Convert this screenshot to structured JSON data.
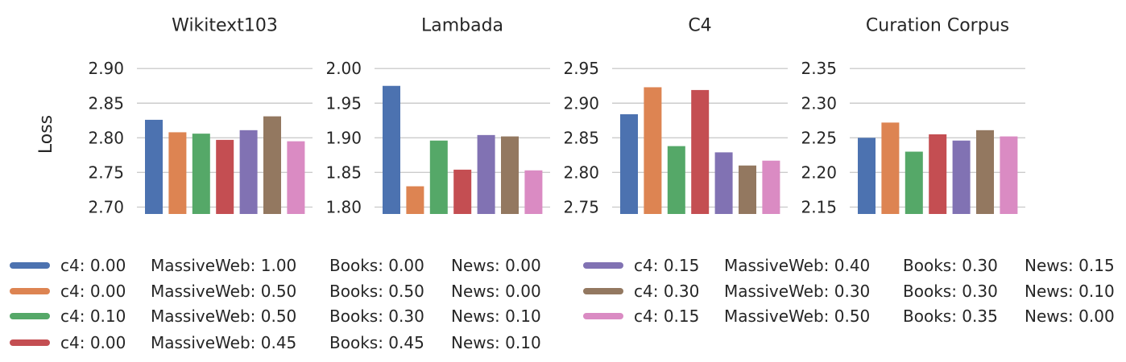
{
  "ylabel": "Loss",
  "colors": [
    "#4c72b0",
    "#dd8452",
    "#55a868",
    "#c44e52",
    "#8172b3",
    "#937860",
    "#da8bc3"
  ],
  "legend": [
    {
      "c4": "c4: 0.00",
      "massiveweb": "MassiveWeb: 1.00",
      "books": "Books: 0.00",
      "news": "News: 0.00"
    },
    {
      "c4": "c4: 0.00",
      "massiveweb": "MassiveWeb: 0.50",
      "books": "Books: 0.50",
      "news": "News: 0.00"
    },
    {
      "c4": "c4: 0.10",
      "massiveweb": "MassiveWeb: 0.50",
      "books": "Books: 0.30",
      "news": "News: 0.10"
    },
    {
      "c4": "c4: 0.00",
      "massiveweb": "MassiveWeb: 0.45",
      "books": "Books: 0.45",
      "news": "News: 0.10"
    },
    {
      "c4": "c4: 0.15",
      "massiveweb": "MassiveWeb: 0.40",
      "books": "Books: 0.30",
      "news": "News: 0.15"
    },
    {
      "c4": "c4: 0.30",
      "massiveweb": "MassiveWeb: 0.30",
      "books": "Books: 0.30",
      "news": "News: 0.10"
    },
    {
      "c4": "c4: 0.15",
      "massiveweb": "MassiveWeb: 0.50",
      "books": "Books: 0.35",
      "news": "News: 0.00"
    }
  ],
  "chart_data": [
    {
      "type": "bar",
      "title": "Wikitext103",
      "ylabel": "Loss",
      "ylim": [
        2.69,
        2.92
      ],
      "yticks": [
        "2.70",
        "2.75",
        "2.80",
        "2.85",
        "2.90"
      ],
      "grid": true,
      "values": [
        2.826,
        2.808,
        2.806,
        2.797,
        2.811,
        2.831,
        2.795
      ]
    },
    {
      "type": "bar",
      "title": "Lambada",
      "ylabel": "",
      "ylim": [
        1.79,
        2.02
      ],
      "yticks": [
        "1.80",
        "1.85",
        "1.90",
        "1.95",
        "2.00"
      ],
      "grid": true,
      "values": [
        1.975,
        1.83,
        1.896,
        1.854,
        1.904,
        1.902,
        1.853
      ]
    },
    {
      "type": "bar",
      "title": "C4",
      "ylabel": "",
      "ylim": [
        2.74,
        2.97
      ],
      "yticks": [
        "2.75",
        "2.80",
        "2.85",
        "2.90",
        "2.95"
      ],
      "grid": true,
      "values": [
        2.884,
        2.923,
        2.838,
        2.919,
        2.829,
        2.81,
        2.817
      ]
    },
    {
      "type": "bar",
      "title": "Curation Corpus",
      "ylabel": "",
      "ylim": [
        2.14,
        2.37
      ],
      "yticks": [
        "2.15",
        "2.20",
        "2.25",
        "2.30",
        "2.35"
      ],
      "grid": true,
      "values": [
        2.25,
        2.272,
        2.23,
        2.255,
        2.246,
        2.261,
        2.252
      ]
    }
  ]
}
